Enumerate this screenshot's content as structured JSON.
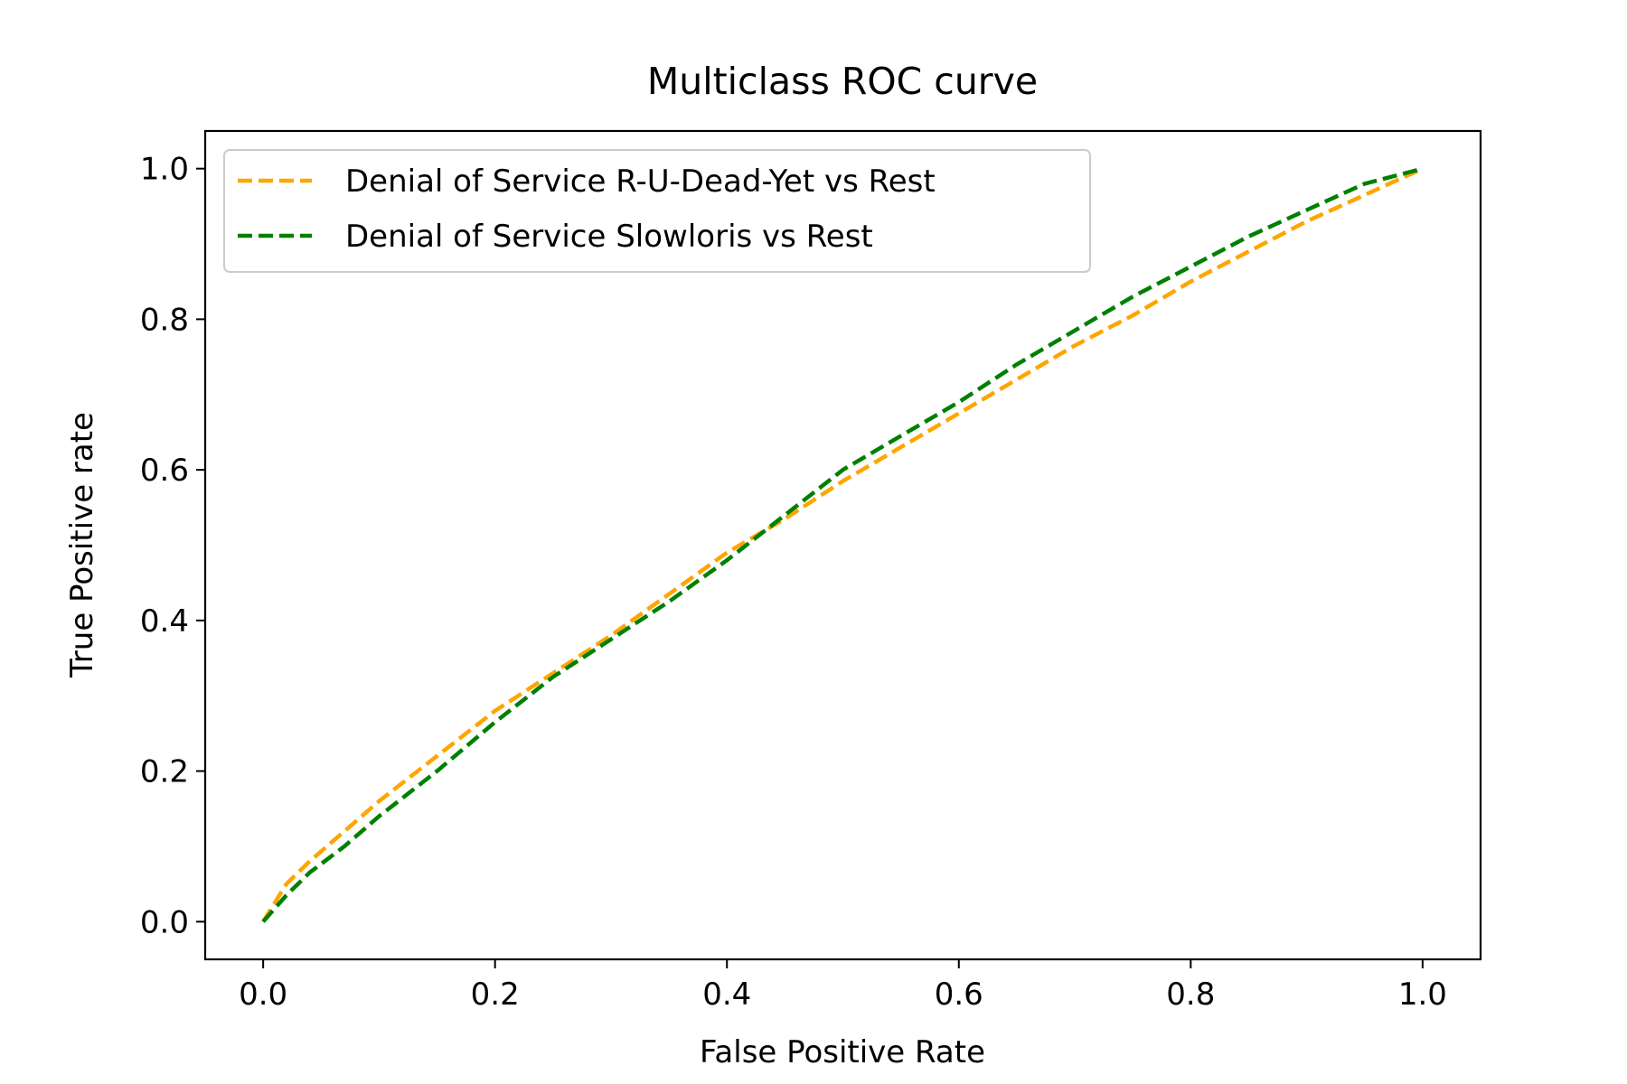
{
  "chart_data": {
    "type": "line",
    "title": "Multiclass ROC curve",
    "xlabel": "False Positive Rate",
    "ylabel": "True Positive rate",
    "xlim": [
      -0.05,
      1.05
    ],
    "ylim": [
      -0.05,
      1.05
    ],
    "xticks": [
      0.0,
      0.2,
      0.4,
      0.6,
      0.8,
      1.0
    ],
    "yticks": [
      0.0,
      0.2,
      0.4,
      0.6,
      0.8,
      1.0
    ],
    "xtick_labels": [
      "0.0",
      "0.2",
      "0.4",
      "0.6",
      "0.8",
      "1.0"
    ],
    "ytick_labels": [
      "0.0",
      "0.2",
      "0.4",
      "0.6",
      "0.8",
      "1.0"
    ],
    "grid": false,
    "legend_position": "upper-left",
    "series": [
      {
        "name": "Denial of Service R-U-Dead-Yet vs Rest",
        "color": "#FFA500",
        "linestyle": "dashed",
        "x": [
          0.0,
          0.02,
          0.04,
          0.07,
          0.1,
          0.15,
          0.2,
          0.25,
          0.3,
          0.35,
          0.4,
          0.45,
          0.5,
          0.55,
          0.6,
          0.65,
          0.7,
          0.75,
          0.8,
          0.85,
          0.9,
          0.95,
          1.0
        ],
        "y": [
          0.0,
          0.05,
          0.08,
          0.12,
          0.16,
          0.22,
          0.28,
          0.33,
          0.38,
          0.435,
          0.49,
          0.535,
          0.585,
          0.63,
          0.675,
          0.72,
          0.765,
          0.805,
          0.85,
          0.89,
          0.93,
          0.965,
          1.0
        ]
      },
      {
        "name": "Denial of Service Slowloris vs Rest",
        "color": "#008000",
        "linestyle": "dashed",
        "x": [
          0.0,
          0.02,
          0.04,
          0.07,
          0.1,
          0.15,
          0.2,
          0.25,
          0.3,
          0.35,
          0.4,
          0.45,
          0.5,
          0.55,
          0.6,
          0.65,
          0.7,
          0.75,
          0.8,
          0.85,
          0.9,
          0.95,
          1.0
        ],
        "y": [
          0.0,
          0.035,
          0.065,
          0.1,
          0.14,
          0.2,
          0.265,
          0.325,
          0.375,
          0.425,
          0.48,
          0.54,
          0.6,
          0.645,
          0.69,
          0.74,
          0.785,
          0.83,
          0.87,
          0.91,
          0.945,
          0.98,
          1.0
        ]
      }
    ]
  }
}
